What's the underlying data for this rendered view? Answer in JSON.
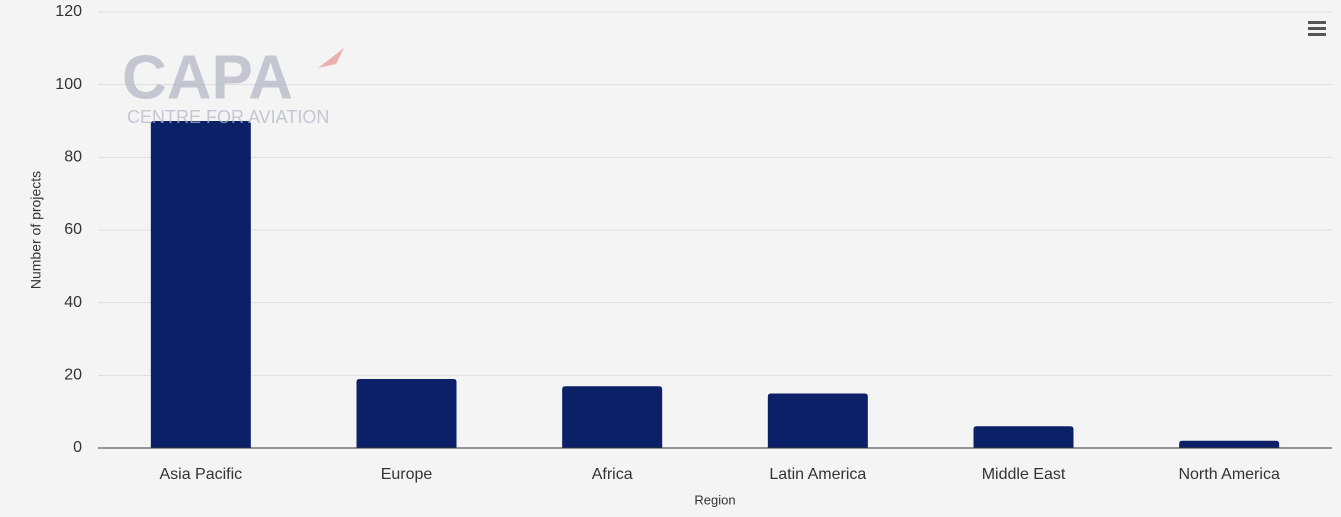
{
  "chart_data": {
    "type": "bar",
    "x_label": "Region",
    "y_label": "Number of projects",
    "categories": [
      "Asia Pacific",
      "Europe",
      "Africa",
      "Latin America",
      "Middle East",
      "North America"
    ],
    "values": [
      90,
      19,
      17,
      15,
      6,
      2
    ],
    "color": "#0c2067",
    "ylim": [
      0,
      120
    ],
    "yticks": [
      0,
      20,
      40,
      60,
      80,
      100,
      120
    ],
    "grid": true,
    "watermark": {
      "logo": "CAPA",
      "tagline": "CENTRE FOR AVIATION"
    }
  }
}
